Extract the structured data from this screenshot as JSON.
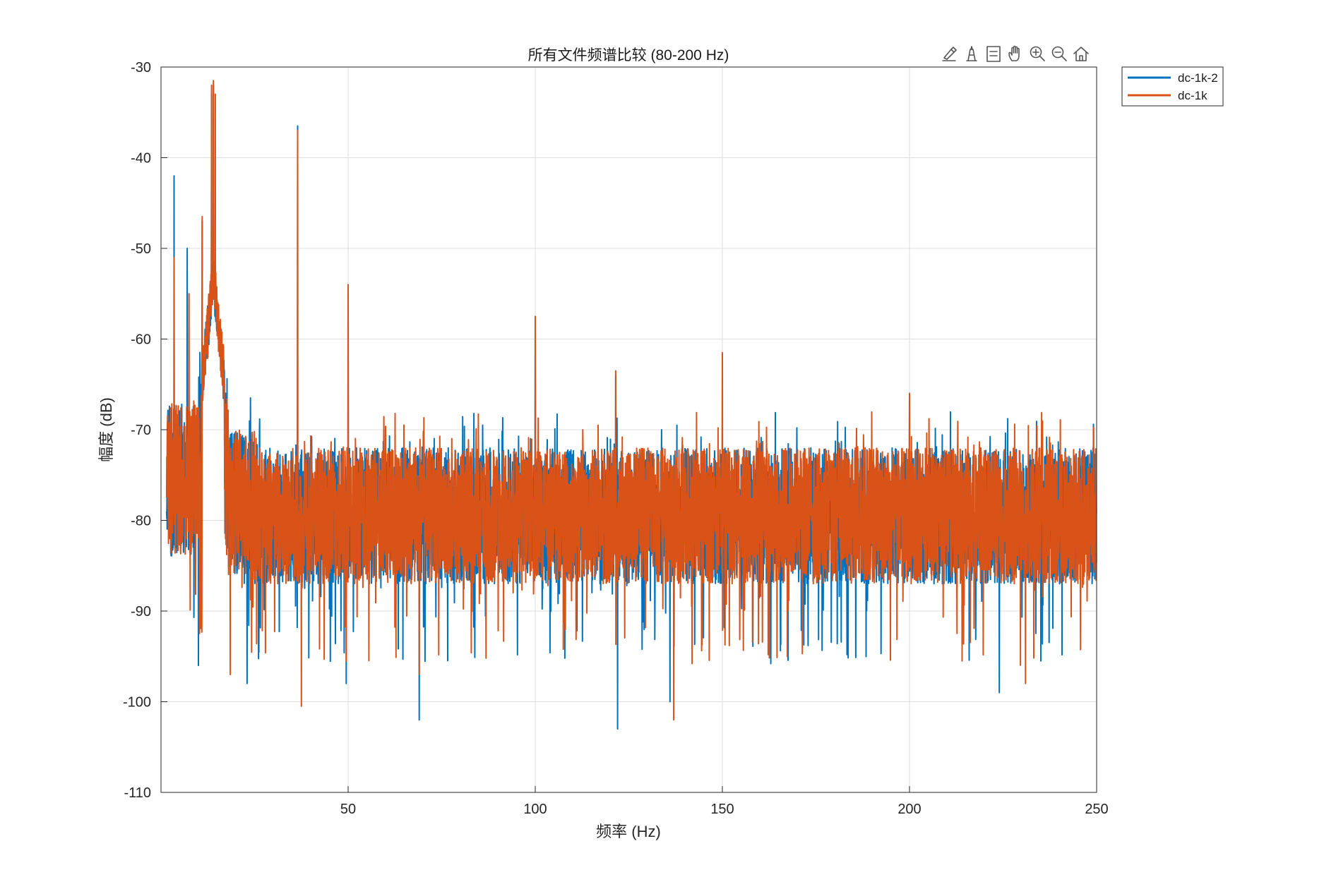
{
  "figure": {
    "toolbar": {
      "icons": [
        "brush-icon",
        "data-tips-icon",
        "legend-toggle-icon",
        "pan-hand-icon",
        "zoom-in-icon",
        "zoom-out-icon",
        "home-icon"
      ]
    }
  },
  "chart_data": {
    "type": "line",
    "title": "所有文件频谱比较 (80-200 Hz)",
    "xlabel": "频率 (Hz)",
    "ylabel": "幅度 (dB)",
    "xlim": [
      0,
      250
    ],
    "ylim": [
      -110,
      -30
    ],
    "x_ticks": [
      50,
      100,
      150,
      200,
      250
    ],
    "y_ticks": [
      -30,
      -40,
      -50,
      -60,
      -70,
      -80,
      -90,
      -100,
      -110
    ],
    "grid": true,
    "legend_position": "top-right-outside",
    "noise_floor": {
      "center_db": -79,
      "upper_db": -72,
      "lower_db": -87
    },
    "series": [
      {
        "name": "dc-1k-2",
        "color": "#0072BD",
        "peaks": [
          {
            "x": 3.5,
            "y": -42
          },
          {
            "x": 7,
            "y": -50
          },
          {
            "x": 11,
            "y": -47
          },
          {
            "x": 13.5,
            "y": -33
          },
          {
            "x": 14,
            "y": -32
          },
          {
            "x": 36.5,
            "y": -36.5
          },
          {
            "x": 50,
            "y": -54
          },
          {
            "x": 100,
            "y": -58
          },
          {
            "x": 121.5,
            "y": -64
          },
          {
            "x": 150,
            "y": -62
          },
          {
            "x": 200,
            "y": -66
          }
        ],
        "lows": [
          {
            "x": 10,
            "y": -96
          },
          {
            "x": 23,
            "y": -98
          },
          {
            "x": 49.5,
            "y": -98
          },
          {
            "x": 69,
            "y": -102
          },
          {
            "x": 122,
            "y": -103
          },
          {
            "x": 136,
            "y": -100
          },
          {
            "x": 224,
            "y": -99
          }
        ]
      },
      {
        "name": "dc-1k",
        "color": "#D95319",
        "peaks": [
          {
            "x": 3.5,
            "y": -51
          },
          {
            "x": 7.5,
            "y": -55
          },
          {
            "x": 11,
            "y": -46.5
          },
          {
            "x": 13.5,
            "y": -32
          },
          {
            "x": 14,
            "y": -31.5
          },
          {
            "x": 14.5,
            "y": -33
          },
          {
            "x": 36.5,
            "y": -37
          },
          {
            "x": 50,
            "y": -54
          },
          {
            "x": 100,
            "y": -57.5
          },
          {
            "x": 121.5,
            "y": -63.5
          },
          {
            "x": 150,
            "y": -61.5
          },
          {
            "x": 200,
            "y": -66
          }
        ],
        "lows": [
          {
            "x": 18.5,
            "y": -97
          },
          {
            "x": 37.5,
            "y": -100.5
          },
          {
            "x": 69,
            "y": -97
          },
          {
            "x": 137,
            "y": -102
          },
          {
            "x": 231,
            "y": -98
          }
        ]
      }
    ]
  }
}
